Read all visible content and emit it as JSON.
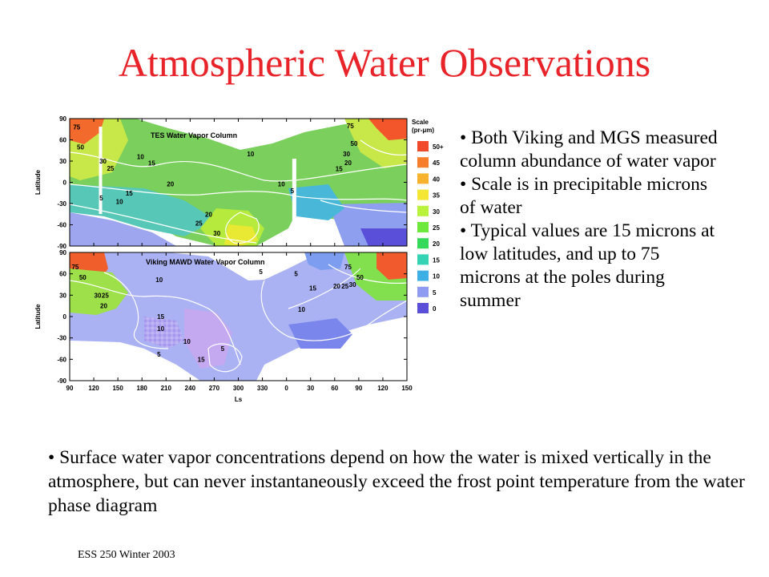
{
  "slide": {
    "title": "Atmospheric Water Observations",
    "footer": "ESS 250 Winter 2003"
  },
  "bullets_right": [
    "• Both Viking and MGS measured column abundance of water vapor",
    "• Scale is in precipitable microns of water",
    "• Typical values are 15 microns at low latitudes, and up to 75 microns at the poles during summer"
  ],
  "bullet_bottom": "• Surface water vapor concentrations depend on how the water is mixed vertically in the atmosphere, but can never instantaneously exceed the frost point temperature from the water phase diagram",
  "figure": {
    "ylabel": "Latitude",
    "xlabel": "Ls",
    "y_ticks": [
      "90",
      "60",
      "30",
      "0",
      "-30",
      "-60",
      "-90"
    ],
    "x_ticks": [
      "90",
      "120",
      "150",
      "180",
      "210",
      "240",
      "270",
      "300",
      "330",
      "0",
      "30",
      "60",
      "90",
      "120",
      "150"
    ],
    "panels": [
      {
        "title": "TES Water Vapor Column",
        "contour_labels": [
          {
            "text": "75",
            "lat": 78,
            "ls": 100
          },
          {
            "text": "50",
            "lat": 50,
            "ls": 105
          },
          {
            "text": "30",
            "lat": 30,
            "ls": 135
          },
          {
            "text": "25",
            "lat": 20,
            "ls": 145
          },
          {
            "text": "10",
            "lat": 36,
            "ls": 185
          },
          {
            "text": "15",
            "lat": 27,
            "ls": 200
          },
          {
            "text": "20",
            "lat": -2,
            "ls": 225
          },
          {
            "text": "10",
            "lat": -27,
            "ls": 157
          },
          {
            "text": "15",
            "lat": -15,
            "ls": 170
          },
          {
            "text": "5",
            "lat": -22,
            "ls": 135
          },
          {
            "text": "10",
            "lat": 40,
            "ls": 332
          },
          {
            "text": "10",
            "lat": -2,
            "ls": 373
          },
          {
            "text": "5",
            "lat": -12,
            "ls": 390
          },
          {
            "text": "20",
            "lat": -45,
            "ls": 276
          },
          {
            "text": "25",
            "lat": -58,
            "ls": 263
          },
          {
            "text": "30",
            "lat": -72,
            "ls": 287
          },
          {
            "text": "75",
            "lat": 80,
            "ls": 465
          },
          {
            "text": "50",
            "lat": 55,
            "ls": 470
          },
          {
            "text": "30",
            "lat": 40,
            "ls": 460
          },
          {
            "text": "20",
            "lat": 28,
            "ls": 462
          },
          {
            "text": "15",
            "lat": 19,
            "ls": 450
          }
        ]
      },
      {
        "title": "Viking MAWD Water Vapor Column",
        "contour_labels": [
          {
            "text": "75",
            "lat": 70,
            "ls": 98
          },
          {
            "text": "50",
            "lat": 55,
            "ls": 108
          },
          {
            "text": "30",
            "lat": 30,
            "ls": 128
          },
          {
            "text": "25",
            "lat": 30,
            "ls": 138
          },
          {
            "text": "20",
            "lat": 15,
            "ls": 136
          },
          {
            "text": "10",
            "lat": 52,
            "ls": 210
          },
          {
            "text": "15",
            "lat": 0,
            "ls": 212
          },
          {
            "text": "10",
            "lat": -17,
            "ls": 212
          },
          {
            "text": "5",
            "lat": -53,
            "ls": 212
          },
          {
            "text": "10",
            "lat": -35,
            "ls": 247
          },
          {
            "text": "15",
            "lat": -60,
            "ls": 266
          },
          {
            "text": "5",
            "lat": -45,
            "ls": 297
          },
          {
            "text": "5",
            "lat": 63,
            "ls": 348
          },
          {
            "text": "15",
            "lat": 40,
            "ls": 415
          },
          {
            "text": "10",
            "lat": 10,
            "ls": 400
          },
          {
            "text": "5",
            "lat": 60,
            "ls": 395
          },
          {
            "text": "75",
            "lat": 70,
            "ls": 462
          },
          {
            "text": "50",
            "lat": 55,
            "ls": 478
          },
          {
            "text": "20",
            "lat": 43,
            "ls": 447
          },
          {
            "text": "25",
            "lat": 43,
            "ls": 458
          },
          {
            "text": "30",
            "lat": 45,
            "ls": 468
          }
        ]
      }
    ],
    "scale": {
      "title": "Scale",
      "unit": "(pr-μm)",
      "levels": [
        {
          "label": "50+",
          "color": "#f04a2a"
        },
        {
          "label": "45",
          "color": "#f77e2c"
        },
        {
          "label": "40",
          "color": "#f9b22e"
        },
        {
          "label": "35",
          "color": "#f3e634"
        },
        {
          "label": "30",
          "color": "#b8f23a"
        },
        {
          "label": "25",
          "color": "#6ee83b"
        },
        {
          "label": "20",
          "color": "#35d95a"
        },
        {
          "label": "15",
          "color": "#36d2b4"
        },
        {
          "label": "10",
          "color": "#3fb0e6"
        },
        {
          "label": "5",
          "color": "#8e9bf0"
        },
        {
          "label": "0",
          "color": "#5a4fd8"
        }
      ]
    }
  }
}
